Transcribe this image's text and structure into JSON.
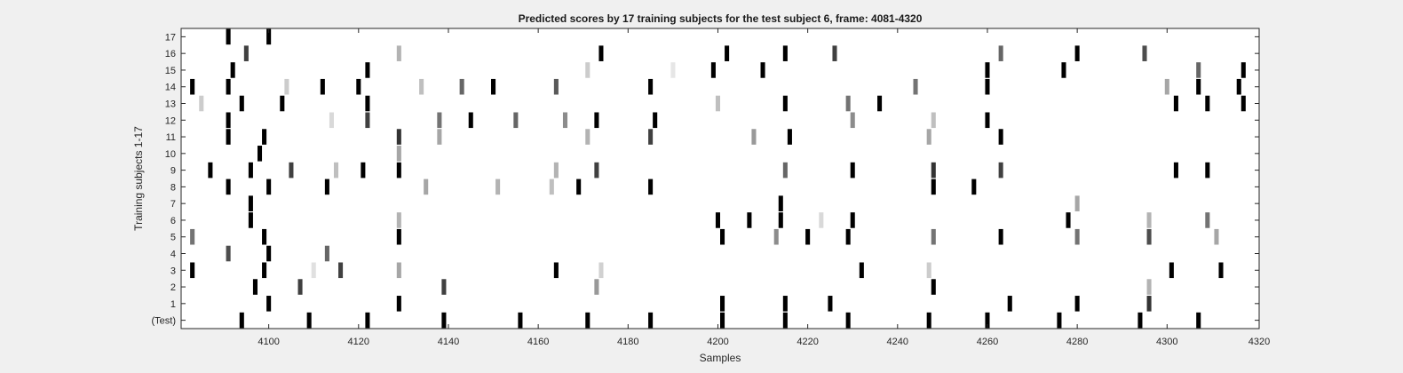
{
  "chart_data": {
    "type": "heatmap",
    "title": "Predicted scores by 17 training subjects for the test subject 6, frame: 4081-4320",
    "xlabel": "Samples",
    "ylabel": "Training subjects 1-17",
    "xlim": [
      4081,
      4320
    ],
    "x_ticks": [
      4100,
      4120,
      4140,
      4160,
      4180,
      4200,
      4220,
      4240,
      4260,
      4280,
      4300,
      4320
    ],
    "row_labels": [
      "(Test)",
      "1",
      "2",
      "3",
      "4",
      "5",
      "6",
      "7",
      "8",
      "9",
      "10",
      "11",
      "12",
      "13",
      "14",
      "15",
      "16",
      "17"
    ],
    "value_range": [
      0,
      1
    ],
    "colormap": "gray-inverted",
    "rows": [
      {
        "row": "(Test)",
        "marks": [
          [
            4094,
            1
          ],
          [
            4109,
            1
          ],
          [
            4122,
            1
          ],
          [
            4139,
            1
          ],
          [
            4156,
            1
          ],
          [
            4171,
            1
          ],
          [
            4185,
            1
          ],
          [
            4201,
            1
          ],
          [
            4215,
            1
          ],
          [
            4229,
            1
          ],
          [
            4247,
            1
          ],
          [
            4260,
            1
          ],
          [
            4276,
            1
          ],
          [
            4294,
            1
          ],
          [
            4307,
            1
          ]
        ]
      },
      {
        "row": "1",
        "marks": [
          [
            4100,
            1
          ],
          [
            4129,
            1
          ],
          [
            4201,
            1
          ],
          [
            4215,
            1
          ],
          [
            4225,
            1
          ],
          [
            4265,
            1
          ],
          [
            4280,
            1
          ],
          [
            4296,
            0.8
          ]
        ]
      },
      {
        "row": "2",
        "marks": [
          [
            4097,
            1
          ],
          [
            4107,
            0.75
          ],
          [
            4139,
            0.75
          ],
          [
            4173,
            0.4
          ],
          [
            4248,
            1
          ],
          [
            4296,
            0.3
          ]
        ]
      },
      {
        "row": "3",
        "marks": [
          [
            4083,
            1
          ],
          [
            4099,
            1
          ],
          [
            4110,
            0.12
          ],
          [
            4116,
            0.75
          ],
          [
            4129,
            0.35
          ],
          [
            4164,
            1
          ],
          [
            4174,
            0.18
          ],
          [
            4232,
            1
          ],
          [
            4247,
            0.2
          ],
          [
            4301,
            1
          ],
          [
            4312,
            1
          ]
        ]
      },
      {
        "row": "4",
        "marks": [
          [
            4091,
            0.7
          ],
          [
            4100,
            1
          ],
          [
            4113,
            0.6
          ]
        ]
      },
      {
        "row": "5",
        "marks": [
          [
            4083,
            0.55
          ],
          [
            4099,
            1
          ],
          [
            4129,
            1
          ],
          [
            4201,
            1
          ],
          [
            4213,
            0.45
          ],
          [
            4220,
            1
          ],
          [
            4229,
            1
          ],
          [
            4248,
            0.55
          ],
          [
            4263,
            1
          ],
          [
            4280,
            0.55
          ],
          [
            4296,
            0.7
          ],
          [
            4311,
            0.35
          ]
        ]
      },
      {
        "row": "6",
        "marks": [
          [
            4096,
            1
          ],
          [
            4129,
            0.3
          ],
          [
            4200,
            1
          ],
          [
            4207,
            1
          ],
          [
            4214,
            1
          ],
          [
            4223,
            0.15
          ],
          [
            4230,
            1
          ],
          [
            4278,
            1
          ],
          [
            4296,
            0.3
          ],
          [
            4309,
            0.55
          ]
        ]
      },
      {
        "row": "7",
        "marks": [
          [
            4096,
            1
          ],
          [
            4214,
            1
          ],
          [
            4280,
            0.35
          ]
        ]
      },
      {
        "row": "8",
        "marks": [
          [
            4091,
            1
          ],
          [
            4100,
            1
          ],
          [
            4113,
            1
          ],
          [
            4135,
            0.35
          ],
          [
            4151,
            0.3
          ],
          [
            4163,
            0.25
          ],
          [
            4169,
            1
          ],
          [
            4185,
            1
          ],
          [
            4248,
            1
          ],
          [
            4257,
            1
          ]
        ]
      },
      {
        "row": "9",
        "marks": [
          [
            4087,
            1
          ],
          [
            4096,
            1
          ],
          [
            4105,
            0.75
          ],
          [
            4115,
            0.25
          ],
          [
            4121,
            1
          ],
          [
            4129,
            1
          ],
          [
            4164,
            0.3
          ],
          [
            4173,
            0.75
          ],
          [
            4215,
            0.6
          ],
          [
            4230,
            1
          ],
          [
            4248,
            0.8
          ],
          [
            4263,
            0.75
          ],
          [
            4302,
            1
          ],
          [
            4309,
            1
          ]
        ]
      },
      {
        "row": "10",
        "marks": [
          [
            4098,
            1
          ],
          [
            4129,
            0.35
          ]
        ]
      },
      {
        "row": "11",
        "marks": [
          [
            4091,
            1
          ],
          [
            4099,
            1
          ],
          [
            4129,
            0.8
          ],
          [
            4138,
            0.35
          ],
          [
            4171,
            0.3
          ],
          [
            4185,
            0.75
          ],
          [
            4208,
            0.4
          ],
          [
            4216,
            1
          ],
          [
            4247,
            0.35
          ],
          [
            4263,
            1
          ]
        ]
      },
      {
        "row": "12",
        "marks": [
          [
            4091,
            1
          ],
          [
            4114,
            0.15
          ],
          [
            4122,
            0.75
          ],
          [
            4138,
            0.55
          ],
          [
            4145,
            1
          ],
          [
            4155,
            0.6
          ],
          [
            4166,
            0.45
          ],
          [
            4173,
            1
          ],
          [
            4186,
            1
          ],
          [
            4230,
            0.45
          ],
          [
            4248,
            0.25
          ],
          [
            4260,
            1
          ]
        ]
      },
      {
        "row": "13",
        "marks": [
          [
            4085,
            0.2
          ],
          [
            4094,
            1
          ],
          [
            4103,
            1
          ],
          [
            4122,
            1
          ],
          [
            4200,
            0.25
          ],
          [
            4215,
            1
          ],
          [
            4229,
            0.55
          ],
          [
            4236,
            1
          ],
          [
            4302,
            1
          ],
          [
            4309,
            1
          ],
          [
            4317,
            1
          ]
        ]
      },
      {
        "row": "14",
        "marks": [
          [
            4083,
            1
          ],
          [
            4091,
            1
          ],
          [
            4104,
            0.2
          ],
          [
            4112,
            1
          ],
          [
            4120,
            1
          ],
          [
            4134,
            0.25
          ],
          [
            4143,
            0.6
          ],
          [
            4150,
            1
          ],
          [
            4164,
            0.65
          ],
          [
            4185,
            1
          ],
          [
            4244,
            0.55
          ],
          [
            4260,
            1
          ],
          [
            4300,
            0.35
          ],
          [
            4307,
            1
          ],
          [
            4316,
            1
          ]
        ]
      },
      {
        "row": "15",
        "marks": [
          [
            4092,
            1
          ],
          [
            4122,
            1
          ],
          [
            4171,
            0.2
          ],
          [
            4190,
            0.1
          ],
          [
            4199,
            1
          ],
          [
            4210,
            1
          ],
          [
            4260,
            1
          ],
          [
            4277,
            1
          ],
          [
            4307,
            0.6
          ],
          [
            4317,
            1
          ]
        ]
      },
      {
        "row": "16",
        "marks": [
          [
            4095,
            0.75
          ],
          [
            4129,
            0.3
          ],
          [
            4174,
            1
          ],
          [
            4202,
            1
          ],
          [
            4215,
            1
          ],
          [
            4226,
            0.75
          ],
          [
            4263,
            0.6
          ],
          [
            4280,
            1
          ],
          [
            4295,
            0.7
          ]
        ]
      },
      {
        "row": "17",
        "marks": [
          [
            4091,
            1
          ],
          [
            4100,
            1
          ]
        ]
      }
    ]
  }
}
